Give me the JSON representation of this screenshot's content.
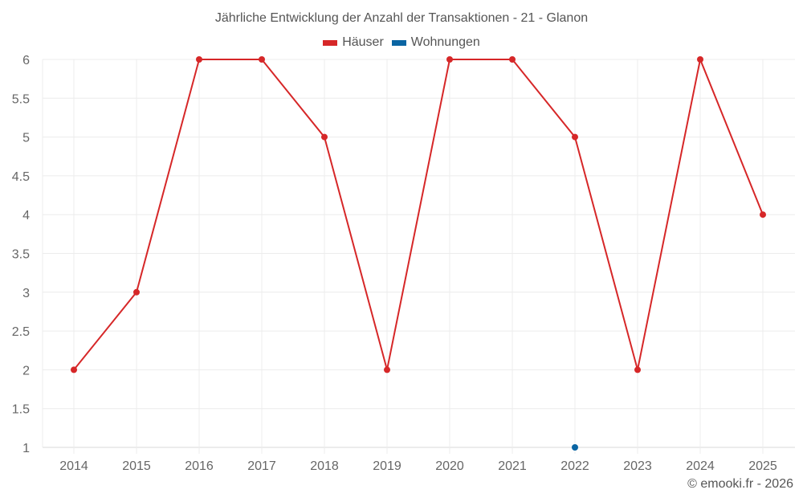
{
  "title": "Jährliche Entwicklung der Anzahl der Transaktionen - 21 - Glanon",
  "legend": [
    {
      "label": "Häuser",
      "color": "#d62728"
    },
    {
      "label": "Wohnungen",
      "color": "#0a65a3"
    }
  ],
  "credit": "© emooki.fr - 2026",
  "chart_data": {
    "type": "line",
    "title": "Jährliche Entwicklung der Anzahl der Transaktionen - 21 - Glanon",
    "xlabel": "",
    "ylabel": "",
    "categories": [
      "2014",
      "2015",
      "2016",
      "2017",
      "2018",
      "2019",
      "2020",
      "2021",
      "2022",
      "2023",
      "2024",
      "2025"
    ],
    "series": [
      {
        "name": "Häuser",
        "color": "#d62728",
        "values": [
          2,
          3,
          6,
          6,
          5,
          2,
          6,
          6,
          5,
          2,
          6,
          4
        ]
      },
      {
        "name": "Wohnungen",
        "color": "#0a65a3",
        "values": [
          null,
          null,
          null,
          null,
          null,
          null,
          null,
          null,
          1,
          null,
          null,
          null
        ]
      }
    ],
    "ylim": [
      1,
      6
    ],
    "yticks": [
      "1",
      "1.5",
      "2",
      "2.5",
      "3",
      "3.5",
      "4",
      "4.5",
      "5",
      "5.5",
      "6"
    ],
    "grid": true,
    "legend_position": "top"
  }
}
